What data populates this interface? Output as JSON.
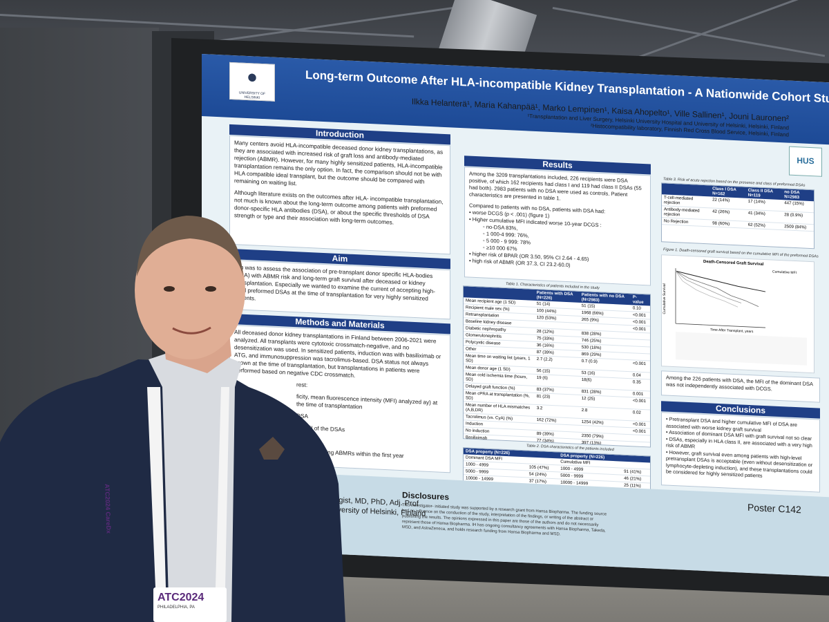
{
  "poster": {
    "institution": "UNIVERSITY OF HELSINKI",
    "partner_logo": "HUS",
    "title": "Long-term Outcome After HLA-incompatible Kidney Transplantation - A Nationwide Cohort Study",
    "authors": "Ilkka Helanterä¹, Maria Kahanpää¹, Marko Lempinen¹, Kaisa Ahopelto¹, Ville Sallinen¹, Jouni Lauronen²",
    "affiliation_1": "¹Transplantation and Liver Surgery, Helsinki University Hospital and University of Helsinki, Helsinki, Finland",
    "affiliation_2": "²Histocompatibility laboratory, Finnish Red Cross Blood Service, Helsinki, Finland",
    "introduction": {
      "heading": "Introduction",
      "p1": "Many centers avoid HLA-incompatible deceased donor kidney transplantations, as they are associated with increased risk of graft loss and antibody-mediated rejection (ABMR). However, for many highly sensitized patients, HLA-incompatible transplantation remains the only option. In fact, the comparison should not be with HLA compatible ideal transplant, but the outcome should be compared with remaining on waiting list.",
      "p2": "Although literature exists on the outcomes after HLA- incompatible transplantation, not much is known about the long-term outcome among patients with preformed donor-specific HLA antibodies (DSA), or about the specific thresholds of DSA strength or type and their association with long-term outcomes."
    },
    "aim": {
      "heading": "Aim",
      "text": "aim was to assess the association of pre-transplant donor specific HLA-bodies (DSA) with ABMR risk and long-term graft survival after deceased or kidney transplantation. Especially we wanted to examine the current of accepting high-level preformed DSAs at the time of transplantation for very highly sensitized patients."
    },
    "methods": {
      "heading": "Methods and Materials",
      "p1": "All deceased donor kidney transplantations in Finland between 2006-2021 were analyzed. All transplants were cytotoxic crossmatch-negative, and no desensitization was used. In sensitized patients, induction was with basiliximab or ATG, and immunosuppression was tacrolimus-based. DSA status not always known at the time of transplantation, but transplantations in patients were performed based on negative CDC crossmatch.",
      "p2": "rest:",
      "p3": "ficity, mean fluorescence intensity (MFI) analyzed ay) at the time of transplantation",
      "p4": "DSA",
      "p5": "nt MFI of the DSAs",
      "p6": "CGS)",
      "p7": "PAR) including ABMRs within the first year"
    },
    "results": {
      "heading": "Results",
      "p1": "Among the 3209 transplantations included, 226 recipients were DSA positive, of which 162 recipients had class I and 119 had class II DSAs (55 had both). 2983 patients with no DSA were used as controls. Patient characteristics are presented in table 1.",
      "p2": "Compared to patients with no DSA, patients with DSA had:",
      "b1": "worse DCGS (p < .001) (figure 1)",
      "b2": "Higher cumulative MFI indicated worse 10-year DCGS :",
      "sb1": "no-DSA 83%,",
      "sb2": "1 000-4 999: 76%,",
      "sb3": "5 000 - 9 999: 78%",
      "sb4": "≥10 000 67%",
      "b3": "higher risk of BPAR (OR 3.50, 95% CI 2.64 - 4.65)",
      "b4": "high risk of ABMR (OR 37.3, CI 23.2-60.0)"
    },
    "table1": {
      "caption": "Table 1. Characteristics of patients included in the study",
      "headers": [
        "",
        "Patients with DSA (N=226)",
        "Patients with no DSA (N=2983)",
        "P- value"
      ],
      "rows": [
        [
          "Mean recipient age (1 SD)",
          "51 (14)",
          "51 (15)",
          "0.10"
        ],
        [
          "Recipient male sex (%)",
          "100 (44%)",
          "1968 (66%)",
          "<0.001"
        ],
        [
          "Retransplantation",
          "120 (53%)",
          "265 (9%)",
          "<0.001"
        ],
        [
          "Baseline kidney disease",
          "",
          "",
          "<0.001"
        ],
        [
          "Diabetic nephropathy",
          "28 (12%)",
          "838 (28%)",
          ""
        ],
        [
          "Glomerulonephritis",
          "75 (33%)",
          "746 (25%)",
          ""
        ],
        [
          "Polycystic disease",
          "36 (16%)",
          "530 (18%)",
          ""
        ],
        [
          "Other",
          "87 (39%)",
          "869 (29%)",
          ""
        ],
        [
          "Mean time on waiting list (years, 1 SD)",
          "2.7 (2.2)",
          "0.7 (0.9)",
          "<0.001"
        ],
        [
          "Mean donor age (1 SD)",
          "56 (15)",
          "53 (16)",
          "0.04"
        ],
        [
          "Mean cold ischemia time (hours, SD)",
          "19 (6)",
          "18(6)",
          "0.35"
        ],
        [
          "Delayed graft function (%)",
          "83 (37%)",
          "831 (28%)",
          "0.001"
        ],
        [
          "Mean cPRA at transplantation (%, SD)",
          "81 (23)",
          "12 (25)",
          "<0.001"
        ],
        [
          "Mean number of HLA mismatches (A,B,DR)",
          "3.2",
          "2.8",
          "0.02"
        ],
        [
          "Tacrolimus (vs. CyA) (%)",
          "162 (72%)",
          "1254 (42%)",
          "<0.001"
        ],
        [
          "Induction",
          "",
          "",
          "<0.001"
        ],
        [
          "No induction",
          "89 (39%)",
          "2350 (79%)",
          ""
        ],
        [
          "Basiliximab",
          "77 (34%)",
          "397 (13%)",
          ""
        ],
        [
          "ATG",
          "60 (27%)",
          "236 (8%)",
          ""
        ]
      ]
    },
    "table2": {
      "caption": "Table 2. DSA characteristics of the patients included",
      "headers": [
        "DSA property (N=226)",
        "",
        "DSA property (N=226)",
        ""
      ],
      "rows": [
        [
          "Dominant DSA MFI",
          "",
          "Cumulative MFI",
          ""
        ],
        [
          "1000 - 4999",
          "105 (47%)",
          "1000 - 4999",
          "91 (41%)"
        ],
        [
          "5000 - 9999",
          "54 (24%)",
          "5000 - 9999",
          "46 (21%)"
        ],
        [
          "10000 - 14999",
          "37 (17%)",
          "10000 - 14999",
          "25 (11%)"
        ],
        [
          "15000 or more",
          "26 (12%)",
          "15000 or more",
          "60 (27%)"
        ]
      ]
    },
    "table3": {
      "caption": "Table 3. Risk of acute rejection based on the presence and class of preformed DSAs",
      "headers": [
        "",
        "Class I DSA N=162",
        "Class II DSA N=119",
        "no DSA N=2983"
      ],
      "rows": [
        [
          "T-cell-mediated rejection",
          "22 (14%)",
          "17 (14%)",
          "447 (15%)"
        ],
        [
          "Antibody-mediated rejection",
          "42 (26%)",
          "41 (34%)",
          "28 (0.9%)"
        ],
        [
          "No Rejection",
          "98 (60%)",
          "62 (52%)",
          "2509 (84%)"
        ]
      ]
    },
    "figure1": {
      "caption": "Figure 1. Death-censored graft survival based on the cumulative MFI of the preformed DSAs",
      "plot_title": "Death-Censored Graft Survival",
      "ylabel": "Cumulative Survival",
      "xlabel": "Time After Transplant, years",
      "legend_title": "Cumulative MFI"
    },
    "figure_note": "Among the 226 patients with DSA, the MFI of the dominant DSA was not independently associated with DCGS.",
    "conclusions": {
      "heading": "Conclusions",
      "c1": "Pretransplant DSA and higher cumulative MFI of DSA are associated with worse kidney graft survival",
      "c2": "Association of dominant DSA MFI with graft survival not so clear",
      "c3": "DSAs, especially in HLA class II, are associated with a very high risk of ABMR",
      "c4": "However, graft survival even among patients with high-level pretransplant DSAs is acceptable (even without desensitization or lymphocyte-depleting induction), and these transplantations could be considered for highly sensitized patients"
    },
    "disclosures": {
      "heading": "Disclosures",
      "text": "This investigator- initiated study was supported by a research grant from Hansa Biopharma. The funding source had no influence on the conduction of the study, interpretation of the findings, or writing of the abstract or publishing the results. The opinions expressed in this paper are those of the authors and do not necessarily represent those of Hansa Biopharma. IH has ongoing consultancy agreements with Hansa Biopharma, Takeda, MSD, and AstraZeneca, and holds research funding from Hansa Biopharma and MSD."
    },
    "contact": "rologist, MD, PhD, Adj. Prof University of Helsinki, Finland",
    "poster_id": "Poster C142"
  },
  "badge": {
    "event": "ATC2024",
    "location": "PHILADELPHIA, PA"
  },
  "lanyard_text": "ATC2024 CareDx"
}
